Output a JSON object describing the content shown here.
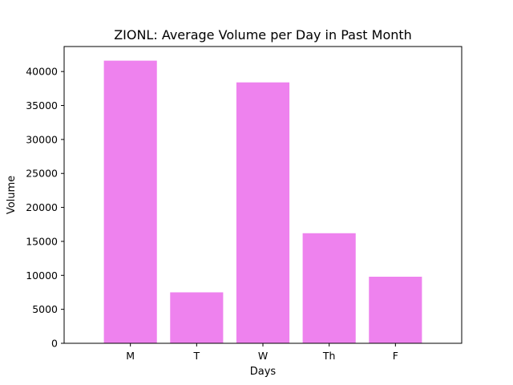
{
  "chart_data": {
    "type": "bar",
    "title": "ZIONL: Average Volume per Day in Past Month",
    "xlabel": "Days",
    "ylabel": "Volume",
    "categories": [
      "M",
      "T",
      "W",
      "Th",
      "F"
    ],
    "values": [
      41600,
      7500,
      38400,
      16200,
      9800
    ],
    "ylim": [
      0,
      43680
    ],
    "yticks": [
      0,
      5000,
      10000,
      15000,
      20000,
      25000,
      30000,
      35000,
      40000
    ],
    "bar_color": "#ee82ee",
    "grid": false,
    "legend": "none"
  }
}
